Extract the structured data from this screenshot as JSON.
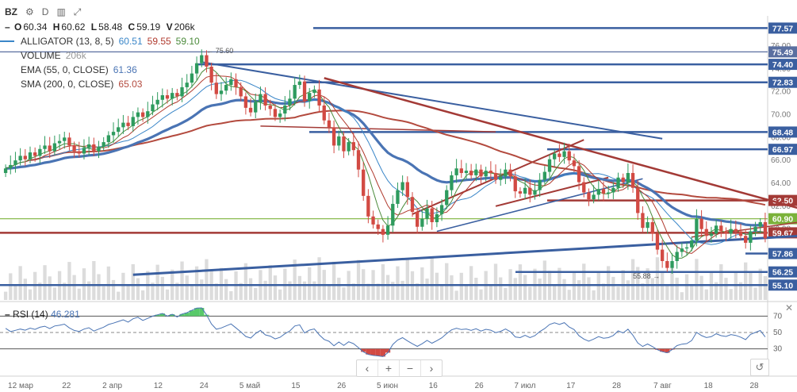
{
  "header": {
    "symbol": "BZ",
    "interval": "D",
    "ohlc": {
      "o_label": "O",
      "o": "60.34",
      "h_label": "H",
      "h": "60.62",
      "l_label": "L",
      "l": "58.48",
      "c_label": "C",
      "c": "59.19",
      "v_label": "V",
      "v": "206k"
    }
  },
  "legend": [
    {
      "name": "ALLIGATOR (13, 8, 5)",
      "values": [
        "60.51",
        "59.55",
        "59.10"
      ],
      "colors": [
        "#3a86c8",
        "#b03a2e",
        "#4a8a3a"
      ]
    },
    {
      "name": "VOLUME",
      "values": [
        "206k"
      ],
      "colors": [
        "#999999"
      ]
    },
    {
      "name": "EMA (55, 0, CLOSE)",
      "values": [
        "61.36"
      ],
      "colors": [
        "#4a74b4"
      ]
    },
    {
      "name": "SMA (200, 0, CLOSE)",
      "values": [
        "65.03"
      ],
      "colors": [
        "#b34a3e"
      ]
    }
  ],
  "rsi": {
    "label": "RSI (14)",
    "value": "46.281"
  },
  "nav": {
    "left": "‹",
    "plus": "+",
    "minus": "−",
    "right": "›",
    "reset": "↺"
  },
  "colors": {
    "up": "#2e9b5e",
    "down": "#d24a43",
    "ema": "#4a74b4",
    "sma": "#b34a3e",
    "hline": "#3a5fa0",
    "trend_red": "#a33a36",
    "green_line": "#7bb23a",
    "volume": "#dcdcdc",
    "rsi_line": "#4a74b4",
    "rsi_fill_up": "#58c96a",
    "rsi_fill_down": "#d24a43"
  },
  "chart_data": {
    "type": "candlestick",
    "x_tick_labels": [
      "12 мар",
      "22",
      "2 апр",
      "12",
      "24",
      "5 май",
      "15",
      "26",
      "5 июн",
      "16",
      "26",
      "7 июл",
      "17",
      "28",
      "7 авг",
      "18",
      "28"
    ],
    "y_tick_labels": [
      "76.00",
      "74.00",
      "72.00",
      "70.00",
      "68.00",
      "66.00",
      "64.00",
      "62.00",
      "60.00",
      "58.00"
    ],
    "ylim": [
      53.8,
      78.5
    ],
    "price_levels": [
      "77.57",
      "75.49",
      "74.40",
      "72.83",
      "68.48",
      "66.97",
      "62.50",
      "60.90",
      "59.67",
      "57.86",
      "56.25",
      "55.10"
    ],
    "annotations": [
      "← 75.60",
      "55.88 →"
    ],
    "closes": [
      65.3,
      65.6,
      66.0,
      66.4,
      66.1,
      66.7,
      66.4,
      67.0,
      67.3,
      66.8,
      67.5,
      67.7,
      68.0,
      67.3,
      66.8,
      66.6,
      67.1,
      67.4,
      66.8,
      67.2,
      67.6,
      68.2,
      68.5,
      68.9,
      69.3,
      69.0,
      69.8,
      70.2,
      69.8,
      70.3,
      70.9,
      71.3,
      71.7,
      71.4,
      71.9,
      71.6,
      72.4,
      72.8,
      73.6,
      74.5,
      75.2,
      74.2,
      72.8,
      71.8,
      72.1,
      72.6,
      73.1,
      72.4,
      71.6,
      70.6,
      70.2,
      71.1,
      71.8,
      70.8,
      70.5,
      69.8,
      70.1,
      70.8,
      71.4,
      72.6,
      72.9,
      71.2,
      71.9,
      72.2,
      70.8,
      69.5,
      68.9,
      67.3,
      68.1,
      66.8,
      67.6,
      66.9,
      65.2,
      62.9,
      61.1,
      60.4,
      60.0,
      59.5,
      60.3,
      62.2,
      63.4,
      64.1,
      62.8,
      61.5,
      60.2,
      60.9,
      61.8,
      60.6,
      61.3,
      62.1,
      63.4,
      64.7,
      65.3,
      64.9,
      65.1,
      64.7,
      65.2,
      64.6,
      65.1,
      64.9,
      64.3,
      64.6,
      65.2,
      64.6,
      63.3,
      63.1,
      63.6,
      63.0,
      63.4,
      64.3,
      65.0,
      66.1,
      66.6,
      66.3,
      66.8,
      66.0,
      65.5,
      64.1,
      63.2,
      62.6,
      63.0,
      63.5,
      63.1,
      63.2,
      63.6,
      64.5,
      64.1,
      64.9,
      63.6,
      61.4,
      60.1,
      60.6,
      59.6,
      58.2,
      57.2,
      56.6,
      57.2,
      58.0,
      58.3,
      58.4,
      59.0,
      60.9,
      60.0,
      59.4,
      59.6,
      60.3,
      59.8,
      59.6,
      60.0,
      59.8,
      59.4,
      58.8,
      59.8,
      60.2,
      60.6,
      59.19
    ],
    "rsi_levels": [
      70,
      50,
      30
    ],
    "rsi_tick_labels": [
      "70",
      "50",
      "30"
    ]
  }
}
